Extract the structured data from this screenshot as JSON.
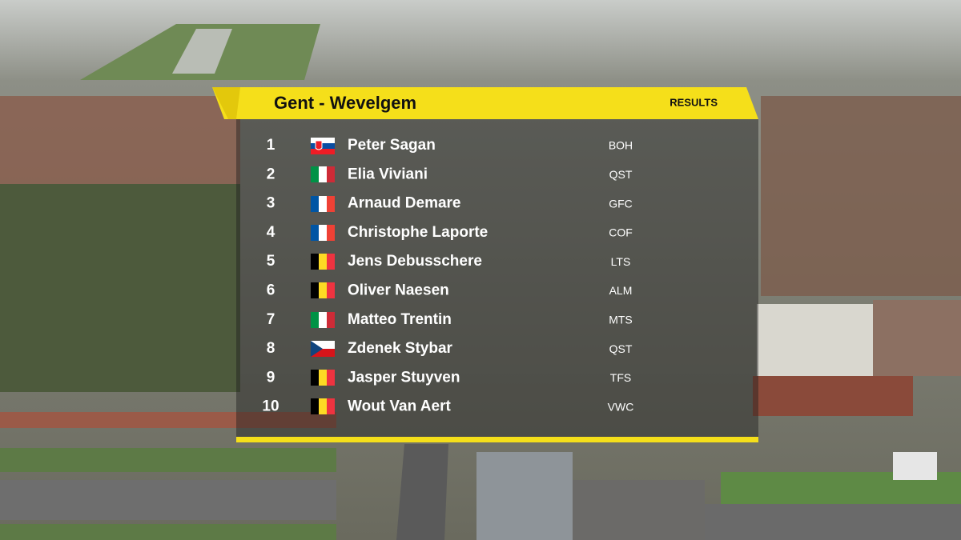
{
  "header": {
    "title": "Gent - Wevelgem",
    "label": "RESULTS"
  },
  "table": {
    "rows": [
      [
        "1",
        "Peter Sagan",
        "BOH"
      ],
      [
        "2",
        "Elia Viviani",
        "QST"
      ],
      [
        "3",
        "Arnaud Demare",
        "GFC"
      ],
      [
        "4",
        "Christophe Laporte",
        "COF"
      ],
      [
        "5",
        "Jens Debusschere",
        "LTS"
      ],
      [
        "6",
        "Oliver Naesen",
        "ALM"
      ],
      [
        "7",
        "Matteo Trentin",
        "MTS"
      ],
      [
        "8",
        "Zdenek Stybar",
        "QST"
      ],
      [
        "9",
        "Jasper Stuyven",
        "TFS"
      ],
      [
        "10",
        "Wout Van Aert",
        "VWC"
      ]
    ]
  }
}
